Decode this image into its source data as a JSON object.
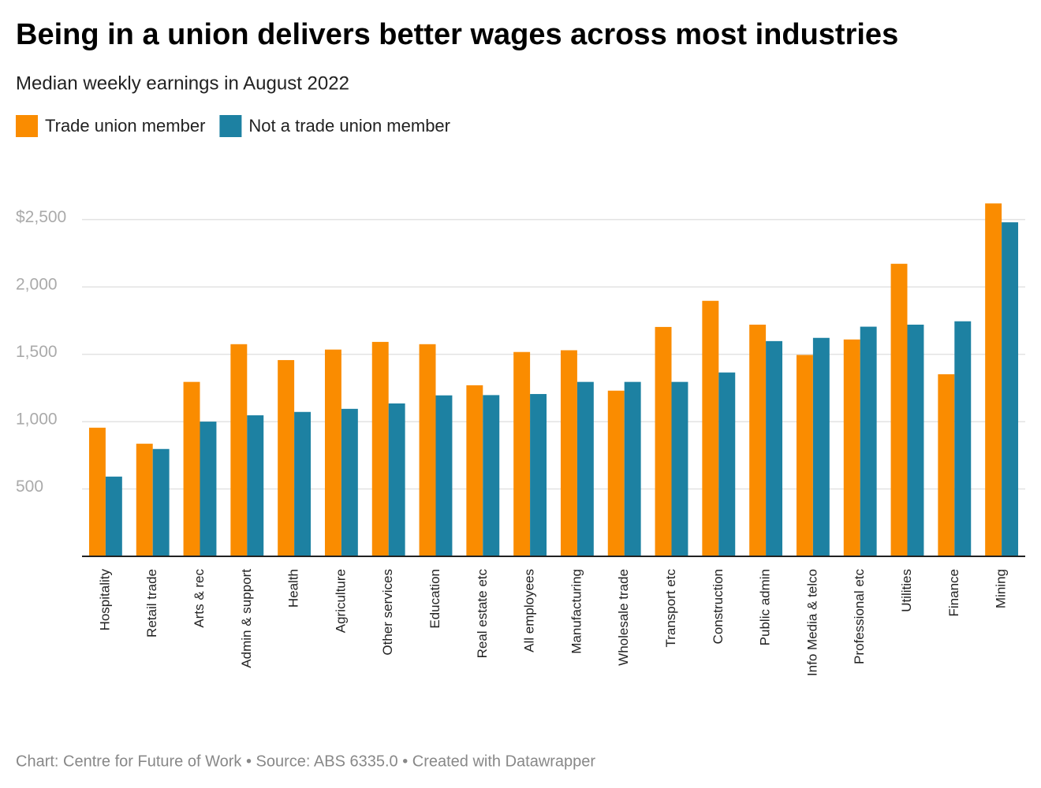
{
  "chart_data": {
    "type": "bar",
    "title": "Being in a union delivers better wages across most industries",
    "subtitle": "Median weekly earnings in August 2022",
    "footer": "Chart: Centre for Future of Work • Source: ABS 6335.0 • Created with Datawrapper",
    "categories": [
      "Hospitality",
      "Retail trade",
      "Arts & rec",
      "Admin & support",
      "Health",
      "Agriculture",
      "Other services",
      "Education",
      "Real estate etc",
      "All employees",
      "Manufacturing",
      "Wholesale trade",
      "Transport etc",
      "Construction",
      "Public admin",
      "Info Media & telco",
      "Professional etc",
      "Utilities",
      "Finance",
      "Mining"
    ],
    "series": [
      {
        "name": "Trade union member",
        "color": "#fa8c00",
        "values": [
          955,
          836,
          1295,
          1575,
          1457,
          1535,
          1592,
          1575,
          1270,
          1517,
          1530,
          1230,
          1703,
          1897,
          1720,
          1495,
          1610,
          2172,
          1352,
          2620
        ]
      },
      {
        "name": "Not a trade union member",
        "color": "#1d81a2",
        "values": [
          592,
          797,
          1000,
          1047,
          1072,
          1095,
          1135,
          1195,
          1197,
          1205,
          1295,
          1295,
          1295,
          1365,
          1598,
          1622,
          1705,
          1720,
          1745,
          2480
        ]
      }
    ],
    "ylim": [
      0,
      2700
    ],
    "yticks": [
      500,
      {
        "value": 1000,
        "label": "1,000"
      },
      {
        "value": 1500,
        "label": "1,500"
      },
      {
        "value": 2000,
        "label": "2,000"
      },
      {
        "value": 2500,
        "label": "$2,500"
      }
    ],
    "grid": true
  }
}
